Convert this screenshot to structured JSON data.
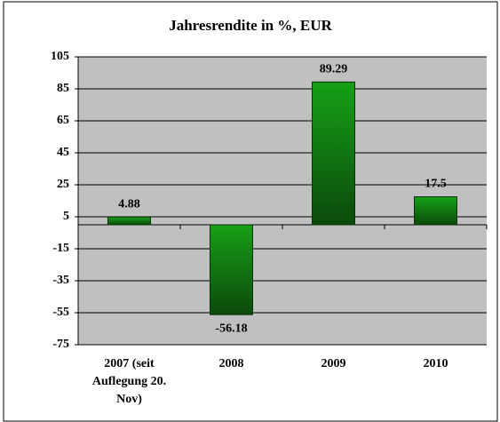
{
  "chart_data": {
    "type": "bar",
    "title": "Jahresrendite in %, EUR",
    "categories": [
      "2007 (seit Auflegung 20. Nov)",
      "2008",
      "2009",
      "2010"
    ],
    "values": [
      4.88,
      -56.18,
      89.29,
      17.5
    ],
    "color": "#128812",
    "ylim": [
      -75,
      105
    ],
    "yticks": [
      -75,
      -55,
      -35,
      -15,
      5,
      25,
      45,
      65,
      85,
      105
    ],
    "grid": true
  }
}
